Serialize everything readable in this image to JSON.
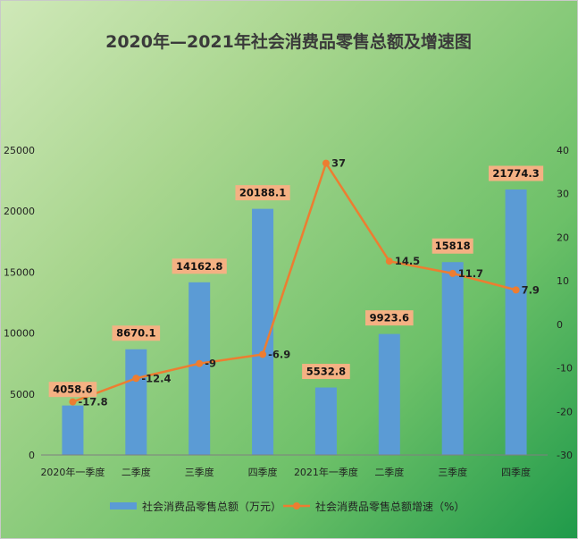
{
  "chart_data": {
    "type": "bar",
    "title": "2020年—2021年社会消费品零售总额及增速图",
    "categories": [
      "2020年一季度",
      "二季度",
      "三季度",
      "四季度",
      "2021年一季度",
      "二季度",
      "三季度",
      "四季度"
    ],
    "series": [
      {
        "name": "社会消费品零售总额（万元）",
        "type": "bar",
        "axis": "left",
        "color": "#5b9bd5",
        "values": [
          4058.6,
          8670.1,
          14162.8,
          20188.1,
          5532.8,
          9923.6,
          15818,
          21774.3
        ],
        "labels": [
          "4058.6",
          "8670.1",
          "14162.8",
          "20188.1",
          "5532.8",
          "9923.6",
          "15818",
          "21774.3"
        ]
      },
      {
        "name": "社会消费品零售总额增速（%）",
        "type": "line",
        "axis": "right",
        "color": "#ed7d31",
        "values": [
          -17.8,
          -12.4,
          -9,
          -6.9,
          37,
          14.5,
          11.7,
          7.9
        ],
        "labels": [
          "-17.8",
          "-12.4",
          "-9",
          "-6.9",
          "37",
          "14.5",
          "11.7",
          "7.9"
        ]
      }
    ],
    "y_left": {
      "min": 0,
      "max": 25000,
      "ticks": [
        "0",
        "5000",
        "10000",
        "15000",
        "20000",
        "25000"
      ]
    },
    "y_right": {
      "min": -30,
      "max": 40,
      "ticks": [
        "-30",
        "-20",
        "-10",
        "0",
        "10",
        "20",
        "30",
        "40"
      ]
    },
    "grid": false,
    "legend_position": "bottom",
    "bar_label_box_color": "#f4b183"
  }
}
